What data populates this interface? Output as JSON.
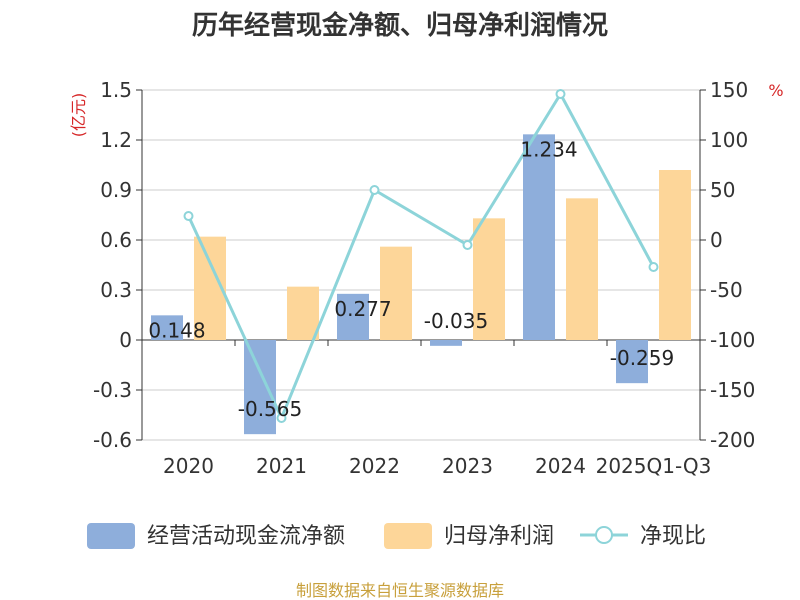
{
  "title": "历年经营现金净额、归母净利润情况",
  "source": "制图数据来自恒生聚源数据库",
  "chart_data": {
    "type": "bar",
    "categories": [
      "2020",
      "2021",
      "2022",
      "2023",
      "2024",
      "2025Q1-Q3"
    ],
    "series": [
      {
        "name": "经营活动现金流净额",
        "type": "bar",
        "axis": "left",
        "values": [
          0.148,
          -0.565,
          0.277,
          -0.035,
          1.234,
          -0.259
        ],
        "data_labels": [
          "0.148",
          "-0.565",
          "0.277",
          "-0.035",
          "1.234",
          "-0.259"
        ],
        "color": "#8eaedb"
      },
      {
        "name": "归母净利润",
        "type": "bar",
        "axis": "left",
        "values": [
          0.62,
          0.32,
          0.56,
          0.73,
          0.85,
          1.02
        ],
        "color": "#fdd699"
      },
      {
        "name": "净现比",
        "type": "line",
        "axis": "right",
        "values": [
          24,
          -178,
          50,
          -5,
          146,
          -27
        ],
        "color": "#8dd4d9"
      }
    ],
    "left_axis": {
      "label": "(亿元)",
      "ylim": [
        -0.6,
        1.5
      ],
      "ticks": [
        -0.6,
        -0.3,
        0,
        0.3,
        0.6,
        0.9,
        1.2,
        1.5
      ],
      "tick_labels": [
        "-0.6",
        "-0.3",
        "0",
        "0.3",
        "0.6",
        "0.9",
        "1.2",
        "1.5"
      ]
    },
    "right_axis": {
      "label": "%",
      "ylim": [
        -200,
        150
      ],
      "ticks": [
        -200,
        -150,
        -100,
        -50,
        0,
        50,
        100,
        150
      ],
      "tick_labels": [
        "-200",
        "-150",
        "-100",
        "-50",
        "0",
        "50",
        "100",
        "150"
      ]
    },
    "grid": true,
    "legend_position": "bottom"
  }
}
